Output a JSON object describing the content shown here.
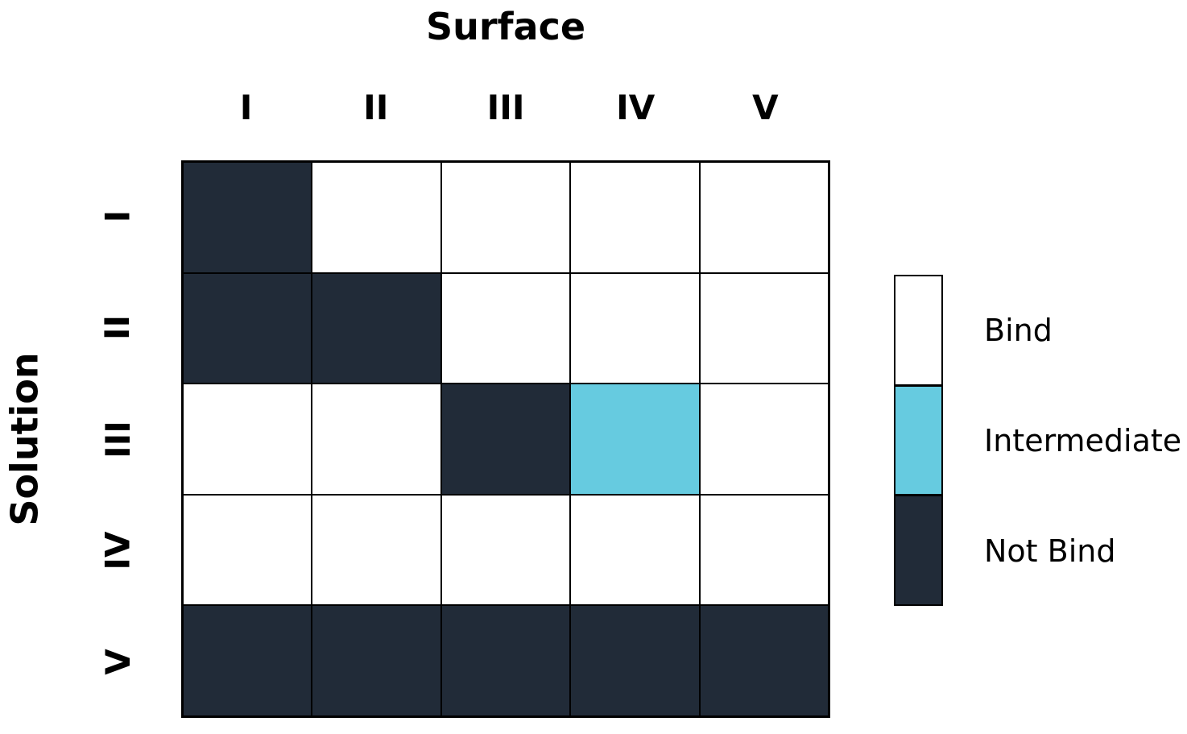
{
  "chart_data": {
    "type": "heatmap",
    "title": "Surface",
    "xlabel": "Surface",
    "ylabel": "Solution",
    "x_categories": [
      "I",
      "II",
      "III",
      "IV",
      "V"
    ],
    "y_categories": [
      "I",
      "II",
      "III",
      "IV",
      "V"
    ],
    "values": [
      [
        2,
        0,
        0,
        0,
        0
      ],
      [
        2,
        2,
        0,
        0,
        0
      ],
      [
        0,
        0,
        2,
        1,
        0
      ],
      [
        0,
        0,
        0,
        0,
        0
      ],
      [
        2,
        2,
        2,
        2,
        2
      ]
    ],
    "value_scale": [
      {
        "value": 0,
        "label": "Bind",
        "color": "#ffffff"
      },
      {
        "value": 1,
        "label": "Intermediate",
        "color": "#66cbe0"
      },
      {
        "value": 2,
        "label": "Not Bind",
        "color": "#212b38"
      }
    ],
    "legend": {
      "position": "right",
      "entries": [
        {
          "label": "Bind",
          "color": "#ffffff"
        },
        {
          "label": "Intermediate",
          "color": "#66cbe0"
        },
        {
          "label": "Not Bind",
          "color": "#212b38"
        }
      ]
    },
    "grid": true,
    "grid_line_color": "#000000",
    "background_color": "#ffffff"
  }
}
